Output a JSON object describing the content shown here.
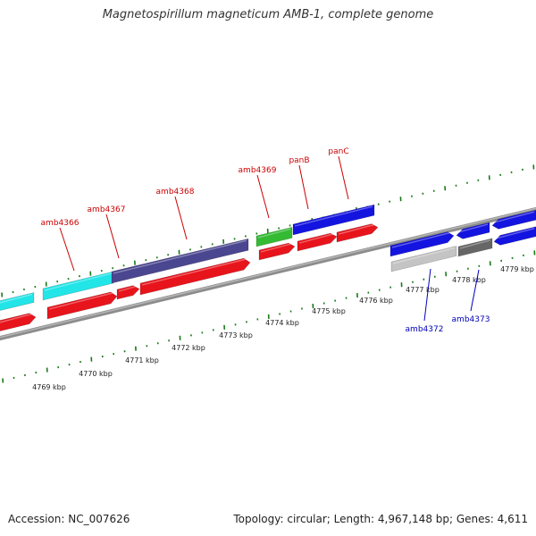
{
  "title": "Magnetospirillum magneticum AMB-1, complete genome",
  "accession": "Accession: NC_007626",
  "topology": "Topology: circular; Length: 4,967,148 bp; Genes: 4,611",
  "colors": {
    "backbone": "#8c8c8c",
    "tick": "#1a7a1a",
    "forward_label": "#cc0000",
    "reverse_label": "#0000bb",
    "red": "#e8141c",
    "cyan": "#22e5e8",
    "navy": "#4a4690",
    "green": "#33bb33",
    "blue": "#1414e0",
    "light_gray": "#c4c4c4",
    "dark_gray": "#666666"
  },
  "scale_labels": [
    "4769 kbp",
    "4770 kbp",
    "4771 kbp",
    "4772 kbp",
    "4773 kbp",
    "4774 kbp",
    "4775 kbp",
    "4776 kbp",
    "4777 kbp",
    "4778 kbp",
    "4779 kbp"
  ],
  "gene_labels": [
    {
      "text": "amb4366",
      "strand": "forward"
    },
    {
      "text": "amb4367",
      "strand": "forward"
    },
    {
      "text": "amb4368",
      "strand": "forward"
    },
    {
      "text": "amb4369",
      "strand": "forward"
    },
    {
      "text": "panB",
      "strand": "forward"
    },
    {
      "text": "panC",
      "strand": "forward"
    },
    {
      "text": "amb4372",
      "strand": "reverse"
    },
    {
      "text": "amb4373",
      "strand": "reverse"
    }
  ]
}
